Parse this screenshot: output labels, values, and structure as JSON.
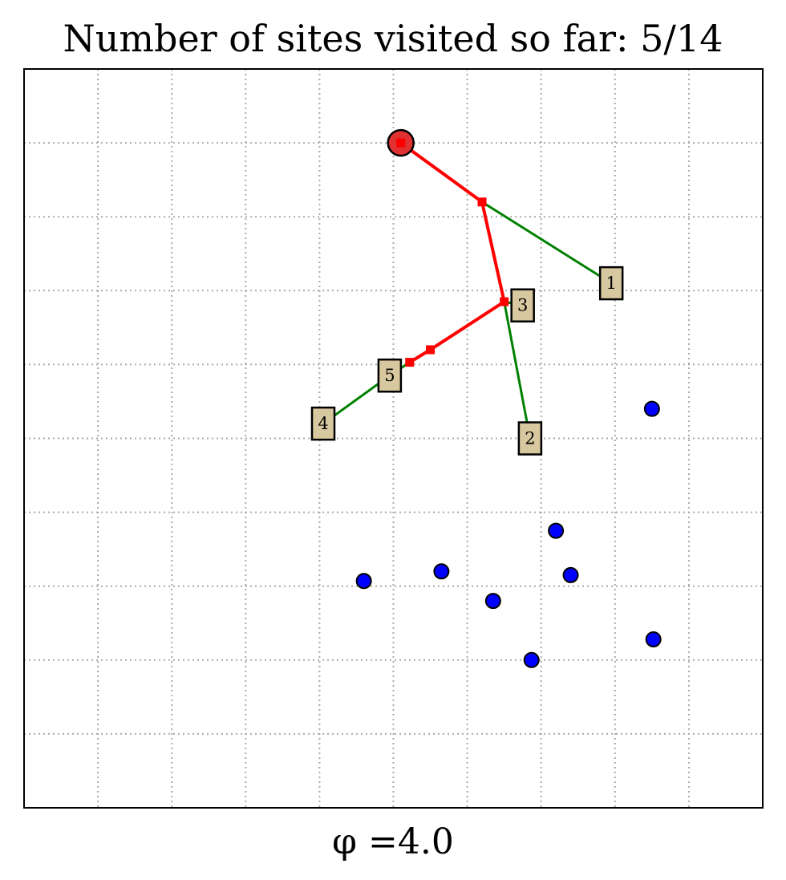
{
  "chart_data": {
    "type": "scatter",
    "title": "Number of sites visited so far: 5/14",
    "xlabel": "φ =4.0",
    "ylabel": "",
    "xlim": [
      0,
      10
    ],
    "ylim": [
      0,
      10
    ],
    "grid": true,
    "grid_ticks": [
      1,
      2,
      3,
      4,
      5,
      6,
      7,
      8,
      9
    ],
    "colors": {
      "path": "#ff0000",
      "connector": "#008000",
      "visited_fill": "#d8c8a0",
      "unvisited_fill": "#0000ff",
      "start_fill": "#e03030",
      "grid": "#aaaaaa"
    },
    "start": {
      "x": 5.1,
      "y": 9.0
    },
    "path": [
      {
        "x": 5.1,
        "y": 9.0
      },
      {
        "x": 6.2,
        "y": 8.2
      },
      {
        "x": 6.5,
        "y": 6.85
      },
      {
        "x": 5.5,
        "y": 6.2
      },
      {
        "x": 5.22,
        "y": 6.03
      }
    ],
    "visited_sites": [
      {
        "label": "1",
        "x": 7.95,
        "y": 7.1,
        "path_point": {
          "x": 6.2,
          "y": 8.2
        }
      },
      {
        "label": "2",
        "x": 6.85,
        "y": 5.0,
        "path_point": {
          "x": 6.5,
          "y": 6.85
        }
      },
      {
        "label": "3",
        "x": 6.75,
        "y": 6.8,
        "path_point": {
          "x": 6.5,
          "y": 6.85
        }
      },
      {
        "label": "4",
        "x": 4.05,
        "y": 5.2,
        "path_point": {
          "x": 4.95,
          "y": 5.85
        }
      },
      {
        "label": "5",
        "x": 4.95,
        "y": 5.85,
        "path_point": {
          "x": 5.22,
          "y": 6.03
        }
      }
    ],
    "unvisited_sites": [
      {
        "x": 8.5,
        "y": 5.4
      },
      {
        "x": 7.2,
        "y": 3.75
      },
      {
        "x": 5.65,
        "y": 3.2
      },
      {
        "x": 7.4,
        "y": 3.15
      },
      {
        "x": 4.6,
        "y": 3.07
      },
      {
        "x": 6.35,
        "y": 2.8
      },
      {
        "x": 8.52,
        "y": 2.28
      },
      {
        "x": 6.87,
        "y": 2.0
      }
    ]
  }
}
